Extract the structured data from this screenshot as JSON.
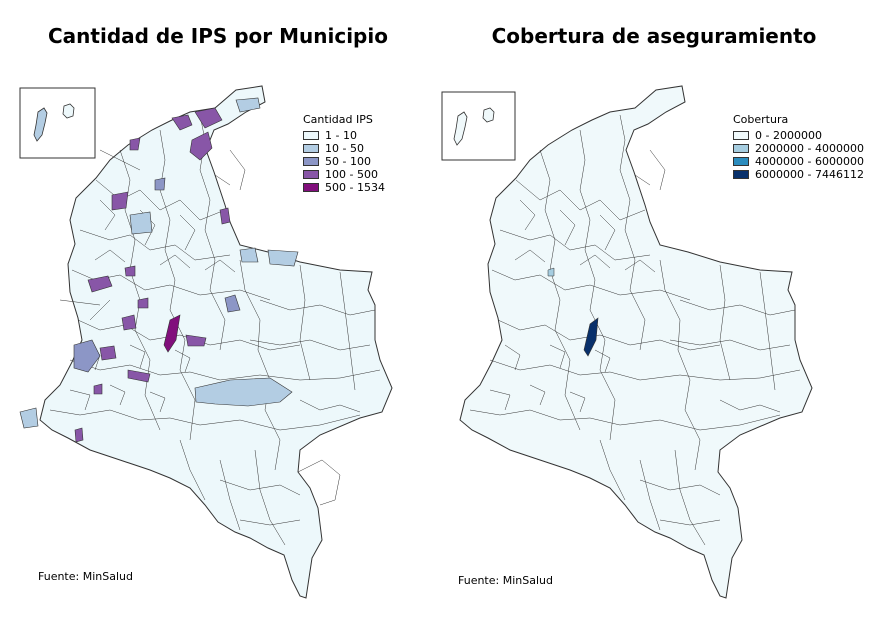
{
  "maps": [
    {
      "title": "Cantidad de IPS por Municipio",
      "legend": {
        "title": "Cantidad IPS",
        "items": [
          {
            "label": "1 - 10",
            "color": "#edf8fb"
          },
          {
            "label": "10 - 50",
            "color": "#b3cde3"
          },
          {
            "label": "50 - 100",
            "color": "#8c96c6"
          },
          {
            "label": "100 - 500",
            "color": "#8856a7"
          },
          {
            "label": "500 - 1534",
            "color": "#810f7c"
          }
        ]
      },
      "source": "Fuente: MinSalud"
    },
    {
      "title": "Cobertura de aseguramiento",
      "legend": {
        "title": "Cobertura",
        "items": [
          {
            "label": "0 - 2000000",
            "color": "#f0f9fb"
          },
          {
            "label": "2000000 - 4000000",
            "color": "#a6cde0"
          },
          {
            "label": "4000000 - 6000000",
            "color": "#2b8cbe"
          },
          {
            "label": "6000000 - 7446112",
            "color": "#08306b"
          }
        ]
      },
      "source": "Fuente: MinSalud"
    }
  ],
  "colors": {
    "border": "#333333",
    "base_fill_left": "#edf8fb",
    "base_fill_right": "#f0f9fb"
  }
}
